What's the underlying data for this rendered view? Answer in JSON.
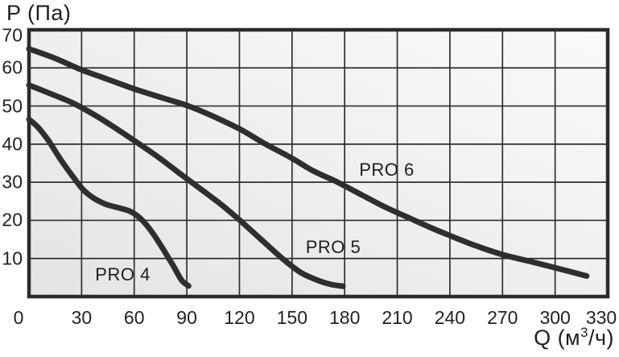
{
  "chart_data": {
    "type": "line",
    "ylabel": "P (Па)",
    "xlabel": {
      "prefix": "Q (м",
      "sup": "3",
      "suffix": "/ч)"
    },
    "xlim": [
      0,
      330
    ],
    "ylim": [
      0,
      70
    ],
    "x_ticks": [
      0,
      30,
      60,
      90,
      120,
      150,
      180,
      210,
      240,
      270,
      300,
      330
    ],
    "y_ticks": [
      10,
      20,
      30,
      40,
      50,
      60,
      70
    ],
    "grid": true,
    "legend_position": "labels-inside-plot-near-curves",
    "series": [
      {
        "name": "PRO 4",
        "label_pos": {
          "q": 53.5,
          "p": 5.7
        },
        "points": [
          [
            0,
            46.5
          ],
          [
            5,
            44.5
          ],
          [
            11,
            41
          ],
          [
            18,
            36
          ],
          [
            25,
            31.5
          ],
          [
            31,
            28
          ],
          [
            37,
            25.8
          ],
          [
            44,
            24.2
          ],
          [
            51,
            23.3
          ],
          [
            58,
            22.3
          ],
          [
            64,
            20.3
          ],
          [
            70,
            17
          ],
          [
            76,
            12.8
          ],
          [
            82,
            8.3
          ],
          [
            87,
            4.3
          ],
          [
            91,
            2.8
          ]
        ]
      },
      {
        "name": "PRO 5",
        "label_pos": {
          "q": 173.5,
          "p": 12.9
        },
        "points": [
          [
            0,
            55.5
          ],
          [
            12,
            53.3
          ],
          [
            25,
            50.8
          ],
          [
            38,
            47.5
          ],
          [
            50,
            44
          ],
          [
            62,
            40.3
          ],
          [
            74,
            36.5
          ],
          [
            86,
            32.3
          ],
          [
            98,
            28.2
          ],
          [
            110,
            24
          ],
          [
            122,
            19.3
          ],
          [
            134,
            14.3
          ],
          [
            145,
            9.8
          ],
          [
            155,
            6.3
          ],
          [
            165,
            4.2
          ],
          [
            172,
            3.2
          ],
          [
            179,
            2.7
          ]
        ]
      },
      {
        "name": "PRO 6",
        "label_pos": {
          "q": 204,
          "p": 33.2
        },
        "points": [
          [
            0,
            65
          ],
          [
            15,
            62.5
          ],
          [
            30,
            59.5
          ],
          [
            45,
            57
          ],
          [
            60,
            54.5
          ],
          [
            75,
            52.3
          ],
          [
            91,
            50
          ],
          [
            105,
            47.3
          ],
          [
            120,
            44
          ],
          [
            135,
            40
          ],
          [
            150,
            36.3
          ],
          [
            162,
            33
          ],
          [
            176,
            30
          ],
          [
            190,
            26.6
          ],
          [
            203,
            23.5
          ],
          [
            215,
            21
          ],
          [
            228,
            18.3
          ],
          [
            240,
            16
          ],
          [
            255,
            13.3
          ],
          [
            270,
            11
          ],
          [
            285,
            9.3
          ],
          [
            298,
            7.8
          ],
          [
            308,
            6.6
          ],
          [
            318,
            5.4
          ]
        ]
      }
    ]
  },
  "colors": {
    "background": "#ffffff",
    "plot_bg_dark": "#e4e4e4",
    "plot_bg_light": "#fafafa",
    "grid": "#2f2f2f",
    "border": "#2b2b2b",
    "curve": "#2e2e2e",
    "text": "#1e1e1e"
  }
}
